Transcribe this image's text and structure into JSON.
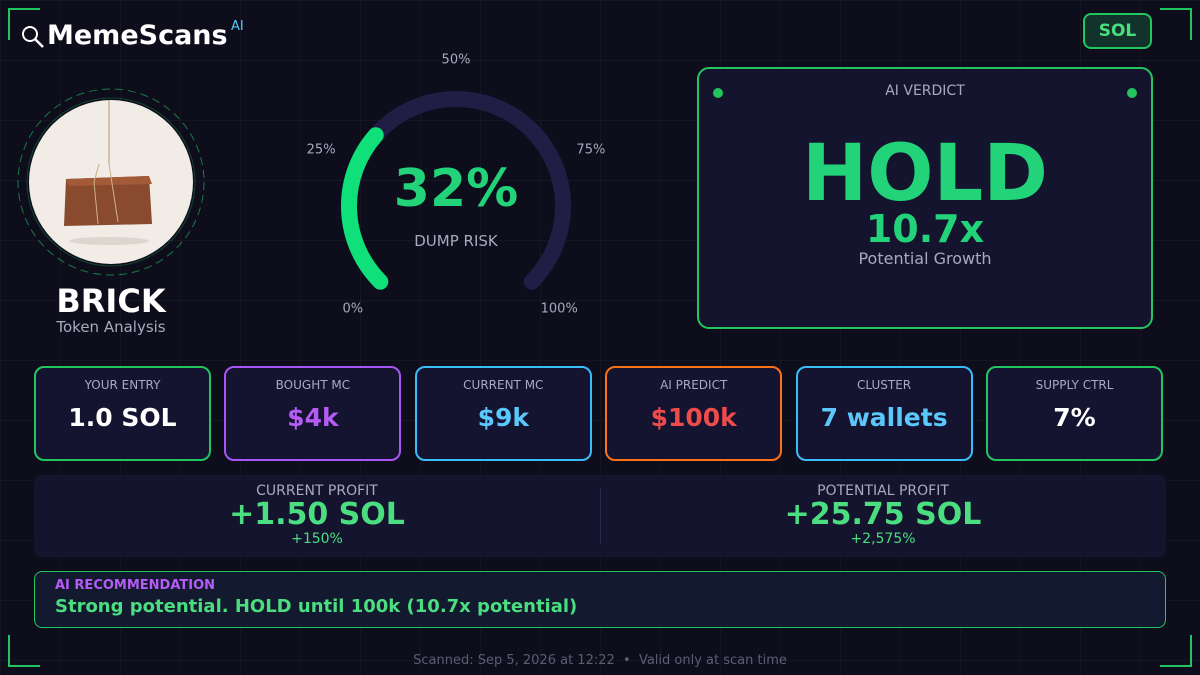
{
  "header": {
    "brand": "MemeScans",
    "brand_badge": "AI",
    "chain": "SOL"
  },
  "token": {
    "name": "BRICK",
    "subtitle": "Token Analysis"
  },
  "gauge": {
    "value": {
      "value": 32,
      "label": "32%"
    },
    "caption": "DUMP RISK",
    "range": [
      0,
      100
    ],
    "ticks": [
      {
        "value": 0,
        "label": "0%"
      },
      {
        "value": 25,
        "label": "25%"
      },
      {
        "value": 50,
        "label": "50%"
      },
      {
        "value": 75,
        "label": "75%"
      },
      {
        "value": 100,
        "label": "100%"
      }
    ]
  },
  "verdict": {
    "label": "AI VERDICT",
    "decision": "HOLD",
    "multiplier": "10.7x",
    "multiplier_caption": "Potential Growth"
  },
  "stats": [
    {
      "label": "YOUR ENTRY",
      "value": "1.0 SOL",
      "border": "#22c55e",
      "color": "#ffffff"
    },
    {
      "label": "BOUGHT MC",
      "value": "$4k",
      "border": "#a855f7",
      "color": "#b45cf5"
    },
    {
      "label": "CURRENT MC",
      "value": "$9k",
      "border": "#38bdf8",
      "color": "#5ac8fa"
    },
    {
      "label": "AI PREDICT",
      "value": "$100k",
      "border": "#f97316",
      "color": "#f04b4b"
    },
    {
      "label": "CLUSTER",
      "value": "7 wallets",
      "border": "#38bdf8",
      "color": "#5ac8fa"
    },
    {
      "label": "SUPPLY CTRL",
      "value": "7%",
      "border": "#22c55e",
      "color": "#ffffff"
    }
  ],
  "profits": [
    {
      "label": "CURRENT PROFIT",
      "value": "+1.50 SOL",
      "percent": "+150%"
    },
    {
      "label": "POTENTIAL PROFIT",
      "value": "+25.75 SOL",
      "percent": "+2,575%"
    }
  ],
  "recommendation": {
    "label": "AI RECOMMENDATION",
    "text": "Strong potential. HOLD until 100k (10.7x potential)"
  },
  "footer": "Scanned: Sep 5, 2026 at 12:22  •  Valid only at scan time"
}
